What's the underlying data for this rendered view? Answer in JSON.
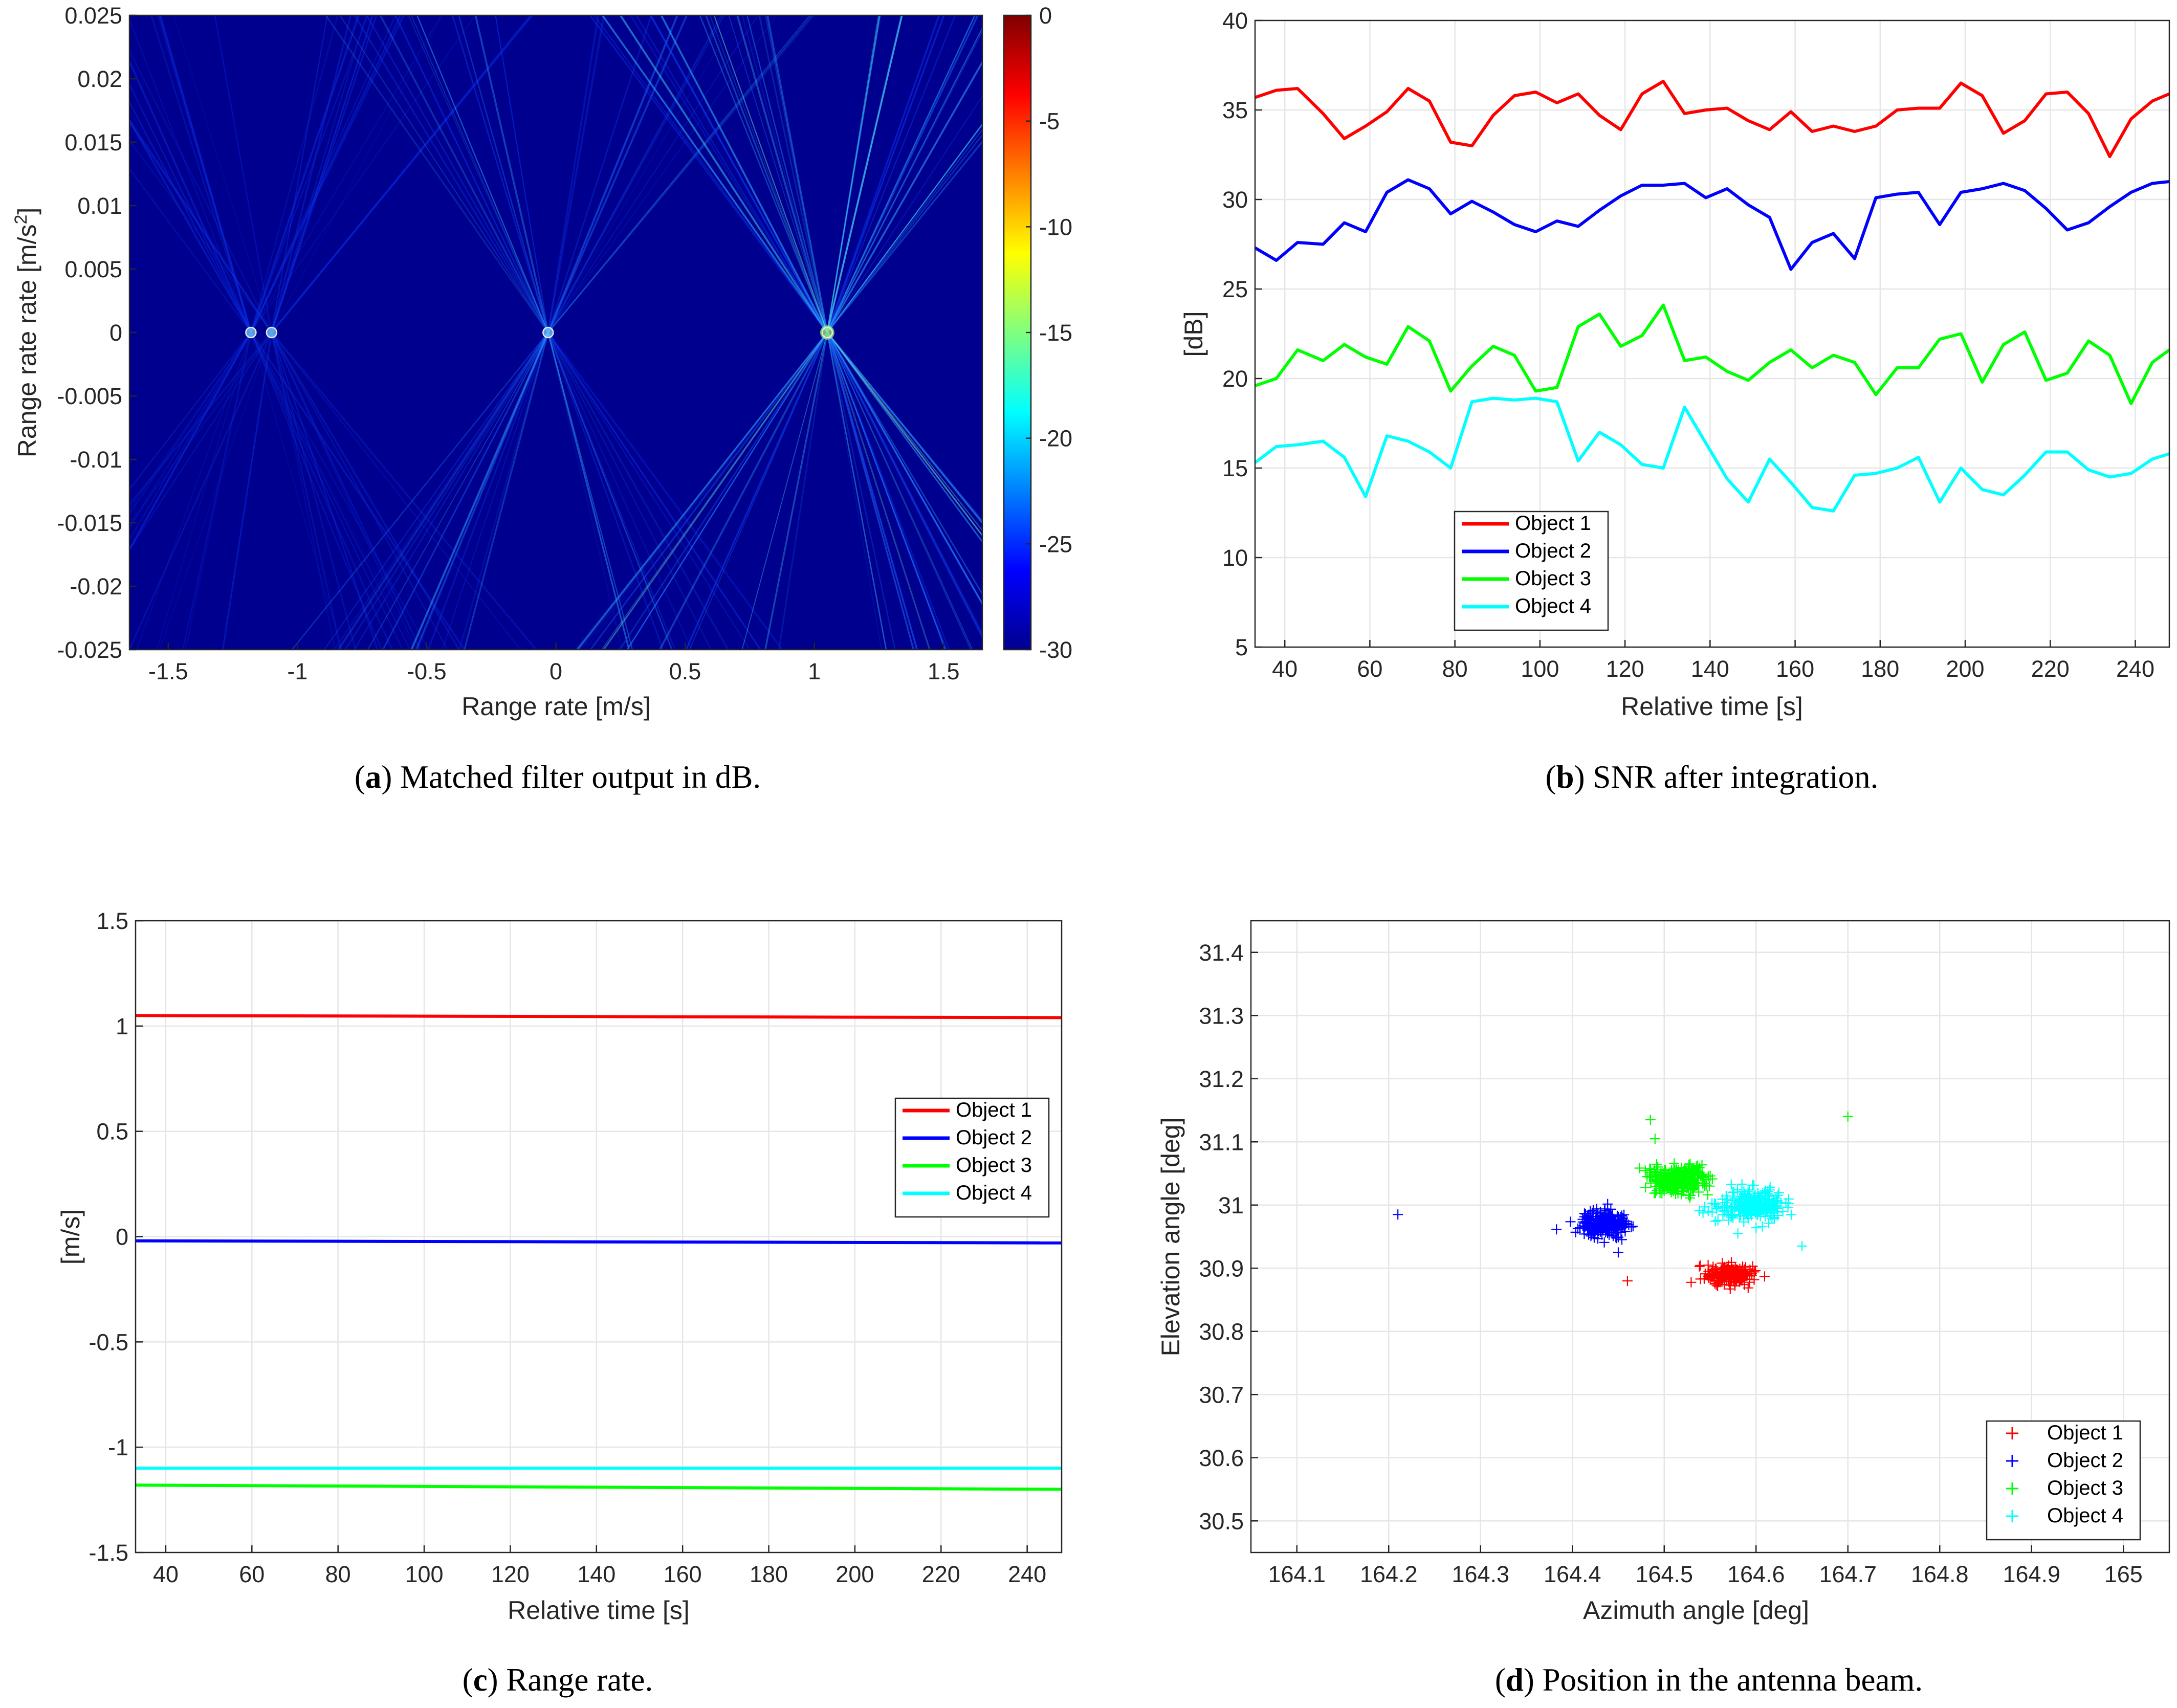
{
  "chart_data": [
    {
      "id": "a",
      "type": "heatmap",
      "caption_label": "a",
      "caption_text": "Matched filter output in dB.",
      "xlabel": "Range rate [m/s]",
      "ylabel_prefix": "Range rate rate [m/s",
      "ylabel_sup": "2",
      "ylabel_suffix": "]",
      "xlim": [
        -1.65,
        1.65
      ],
      "ylim": [
        -0.025,
        0.025
      ],
      "xticks": [
        "-1.5",
        "-1",
        "-0.5",
        "0",
        "0.5",
        "1",
        "1.5"
      ],
      "xtick_values": [
        -1.5,
        -1,
        -0.5,
        0,
        0.5,
        1,
        1.5
      ],
      "yticks": [
        "0.025",
        "0.02",
        "0.015",
        "0.01",
        "0.005",
        "0",
        "-0.005",
        "-0.01",
        "-0.015",
        "-0.02",
        "-0.025"
      ],
      "ytick_values": [
        0.025,
        0.02,
        0.015,
        0.01,
        0.005,
        0,
        -0.005,
        -0.01,
        -0.015,
        -0.02,
        -0.025
      ],
      "colorbar_ticks": [
        "0",
        "-5",
        "-10",
        "-15",
        "-20",
        "-25",
        "-30"
      ],
      "colorbar_values": [
        0,
        -5,
        -10,
        -15,
        -20,
        -25,
        -30
      ],
      "clim": [
        -30,
        0
      ],
      "peaks": [
        {
          "x": -1.18,
          "y": 0,
          "strength": 0.35
        },
        {
          "x": -1.1,
          "y": 0,
          "strength": 0.3
        },
        {
          "x": -0.03,
          "y": 0,
          "strength": 0.65
        },
        {
          "x": 1.05,
          "y": 0,
          "strength": 1.0
        }
      ]
    },
    {
      "id": "b",
      "type": "line",
      "caption_label": "b",
      "caption_text": "SNR after integration.",
      "xlabel": "Relative time [s]",
      "ylabel": "[dB]",
      "xlim": [
        33,
        248
      ],
      "ylim": [
        5,
        40
      ],
      "xticks": [
        "40",
        "60",
        "80",
        "100",
        "120",
        "140",
        "160",
        "180",
        "200",
        "220",
        "240"
      ],
      "xtick_values": [
        40,
        60,
        80,
        100,
        120,
        140,
        160,
        180,
        200,
        220,
        240
      ],
      "yticks": [
        "40",
        "35",
        "30",
        "25",
        "20",
        "15",
        "10",
        "5"
      ],
      "ytick_values": [
        40,
        35,
        30,
        25,
        20,
        15,
        10,
        5
      ],
      "legend": [
        "Object 1",
        "Object 2",
        "Object 3",
        "Object 4"
      ],
      "legend_position": "bottom-left",
      "x": [
        33,
        38,
        43,
        49,
        54,
        59,
        64,
        69,
        74,
        79,
        84,
        89,
        94,
        99,
        104,
        109,
        114,
        119,
        124,
        129,
        134,
        139,
        144,
        149,
        154,
        159,
        164,
        169,
        174,
        179,
        184,
        189,
        194,
        199,
        204,
        209,
        214,
        219,
        224,
        229,
        234,
        239,
        244,
        248
      ],
      "series": [
        {
          "name": "Object 1",
          "color": "#ff0000",
          "values": [
            35.7,
            36.1,
            36.2,
            34.8,
            33.4,
            34.1,
            34.9,
            36.2,
            35.5,
            33.2,
            33.0,
            34.7,
            35.8,
            36.0,
            35.4,
            35.9,
            34.7,
            33.9,
            35.9,
            36.6,
            34.8,
            35.0,
            35.1,
            34.4,
            33.9,
            34.9,
            33.8,
            34.1,
            33.8,
            34.1,
            35.0,
            35.1,
            35.1,
            36.5,
            35.8,
            33.7,
            34.4,
            35.9,
            36.0,
            34.8,
            32.4,
            34.5,
            35.5,
            35.9
          ]
        },
        {
          "name": "Object 2",
          "color": "#0000ff",
          "values": [
            27.3,
            26.6,
            27.6,
            27.5,
            28.7,
            28.2,
            30.4,
            31.1,
            30.6,
            29.2,
            29.9,
            29.3,
            28.6,
            28.2,
            28.8,
            28.5,
            29.4,
            30.2,
            30.8,
            30.8,
            30.9,
            30.1,
            30.6,
            29.7,
            29.0,
            26.1,
            27.6,
            28.1,
            26.7,
            30.1,
            30.3,
            30.4,
            28.6,
            30.4,
            30.6,
            30.9,
            30.5,
            29.5,
            28.3,
            28.7,
            29.6,
            30.4,
            30.9,
            31.0
          ]
        },
        {
          "name": "Object 3",
          "color": "#00ff00",
          "values": [
            19.6,
            20.0,
            21.6,
            21.0,
            21.9,
            21.2,
            20.8,
            22.9,
            22.1,
            19.3,
            20.7,
            21.8,
            21.3,
            19.3,
            19.5,
            22.9,
            23.6,
            21.8,
            22.4,
            24.1,
            21.0,
            21.2,
            20.4,
            19.9,
            20.9,
            21.6,
            20.6,
            21.3,
            20.9,
            19.1,
            20.6,
            20.6,
            22.2,
            22.5,
            19.8,
            21.9,
            22.6,
            19.9,
            20.3,
            22.1,
            21.3,
            18.6,
            20.9,
            21.6
          ]
        },
        {
          "name": "Object 4",
          "color": "#00ffff",
          "values": [
            15.3,
            16.2,
            16.3,
            16.5,
            15.6,
            13.4,
            16.8,
            16.5,
            15.9,
            15.0,
            18.7,
            18.9,
            18.8,
            18.9,
            18.7,
            15.4,
            17.0,
            16.3,
            15.2,
            15.0,
            18.4,
            16.4,
            14.4,
            13.1,
            15.5,
            14.2,
            12.8,
            12.6,
            14.6,
            14.7,
            15.0,
            15.6,
            13.1,
            15.0,
            13.8,
            13.5,
            14.6,
            15.9,
            15.9,
            14.9,
            14.5,
            14.7,
            15.5,
            15.8
          ]
        }
      ]
    },
    {
      "id": "c",
      "type": "line",
      "caption_label": "c",
      "caption_text": "Range rate.",
      "xlabel": "Relative time [s]",
      "ylabel": "[m/s]",
      "xlim": [
        33,
        248
      ],
      "ylim": [
        -1.5,
        1.5
      ],
      "xticks": [
        "40",
        "60",
        "80",
        "100",
        "120",
        "140",
        "160",
        "180",
        "200",
        "220",
        "240"
      ],
      "xtick_values": [
        40,
        60,
        80,
        100,
        120,
        140,
        160,
        180,
        200,
        220,
        240
      ],
      "yticks": [
        "1.5",
        "1",
        "0.5",
        "0",
        "-0.5",
        "-1",
        "-1.5"
      ],
      "ytick_values": [
        1.5,
        1,
        0.5,
        0,
        -0.5,
        -1,
        -1.5
      ],
      "legend": [
        "Object 1",
        "Object 2",
        "Object 3",
        "Object 4"
      ],
      "legend_position": "right",
      "x": [
        33,
        248
      ],
      "series": [
        {
          "name": "Object 1",
          "color": "#ff0000",
          "values": [
            1.05,
            1.04
          ]
        },
        {
          "name": "Object 2",
          "color": "#0000ff",
          "values": [
            -0.02,
            -0.03
          ]
        },
        {
          "name": "Object 3",
          "color": "#00ff00",
          "values": [
            -1.18,
            -1.2
          ]
        },
        {
          "name": "Object 4",
          "color": "#00ffff",
          "values": [
            -1.1,
            -1.1
          ]
        }
      ]
    },
    {
      "id": "d",
      "type": "scatter",
      "caption_label": "d",
      "caption_text": "Position in the antenna beam.",
      "xlabel": "Azimuth angle [deg]",
      "ylabel": "Elevation angle [deg]",
      "xlim": [
        164.05,
        165.05
      ],
      "ylim": [
        30.45,
        31.45
      ],
      "xticks": [
        "164.1",
        "164.2",
        "164.3",
        "164.4",
        "164.5",
        "164.6",
        "164.7",
        "164.8",
        "164.9",
        "165"
      ],
      "xtick_values": [
        164.1,
        164.2,
        164.3,
        164.4,
        164.5,
        164.6,
        164.7,
        164.8,
        164.9,
        165
      ],
      "yticks": [
        "31.4",
        "31.3",
        "31.2",
        "31.1",
        "31",
        "30.9",
        "30.8",
        "30.7",
        "30.6",
        "30.5"
      ],
      "ytick_values": [
        31.4,
        31.3,
        31.2,
        31.1,
        31,
        30.9,
        30.8,
        30.7,
        30.6,
        30.5
      ],
      "legend": [
        "Object 1",
        "Object 2",
        "Object 3",
        "Object 4"
      ],
      "legend_position": "bottom-right",
      "marker": "+",
      "series": [
        {
          "name": "Object 1",
          "color": "#ff0000",
          "center": [
            164.57,
            30.89
          ],
          "spread": [
            0.012,
            0.008
          ],
          "n": 220,
          "outliers": [
            [
              164.46,
              30.88
            ]
          ]
        },
        {
          "name": "Object 2",
          "color": "#0000ff",
          "center": [
            164.435,
            30.97
          ],
          "spread": [
            0.013,
            0.01
          ],
          "n": 240,
          "outliers": [
            [
              164.21,
              30.985
            ],
            [
              164.45,
              30.925
            ]
          ]
        },
        {
          "name": "Object 3",
          "color": "#00ff00",
          "center": [
            164.515,
            31.04
          ],
          "spread": [
            0.016,
            0.011
          ],
          "n": 260,
          "outliers": [
            [
              164.485,
              31.135
            ],
            [
              164.7,
              31.14
            ],
            [
              164.49,
              31.105
            ]
          ]
        },
        {
          "name": "Object 4",
          "color": "#00ffff",
          "center": [
            164.595,
            31.0
          ],
          "spread": [
            0.018,
            0.012
          ],
          "n": 250,
          "outliers": [
            [
              164.65,
              30.935
            ]
          ]
        }
      ]
    }
  ]
}
